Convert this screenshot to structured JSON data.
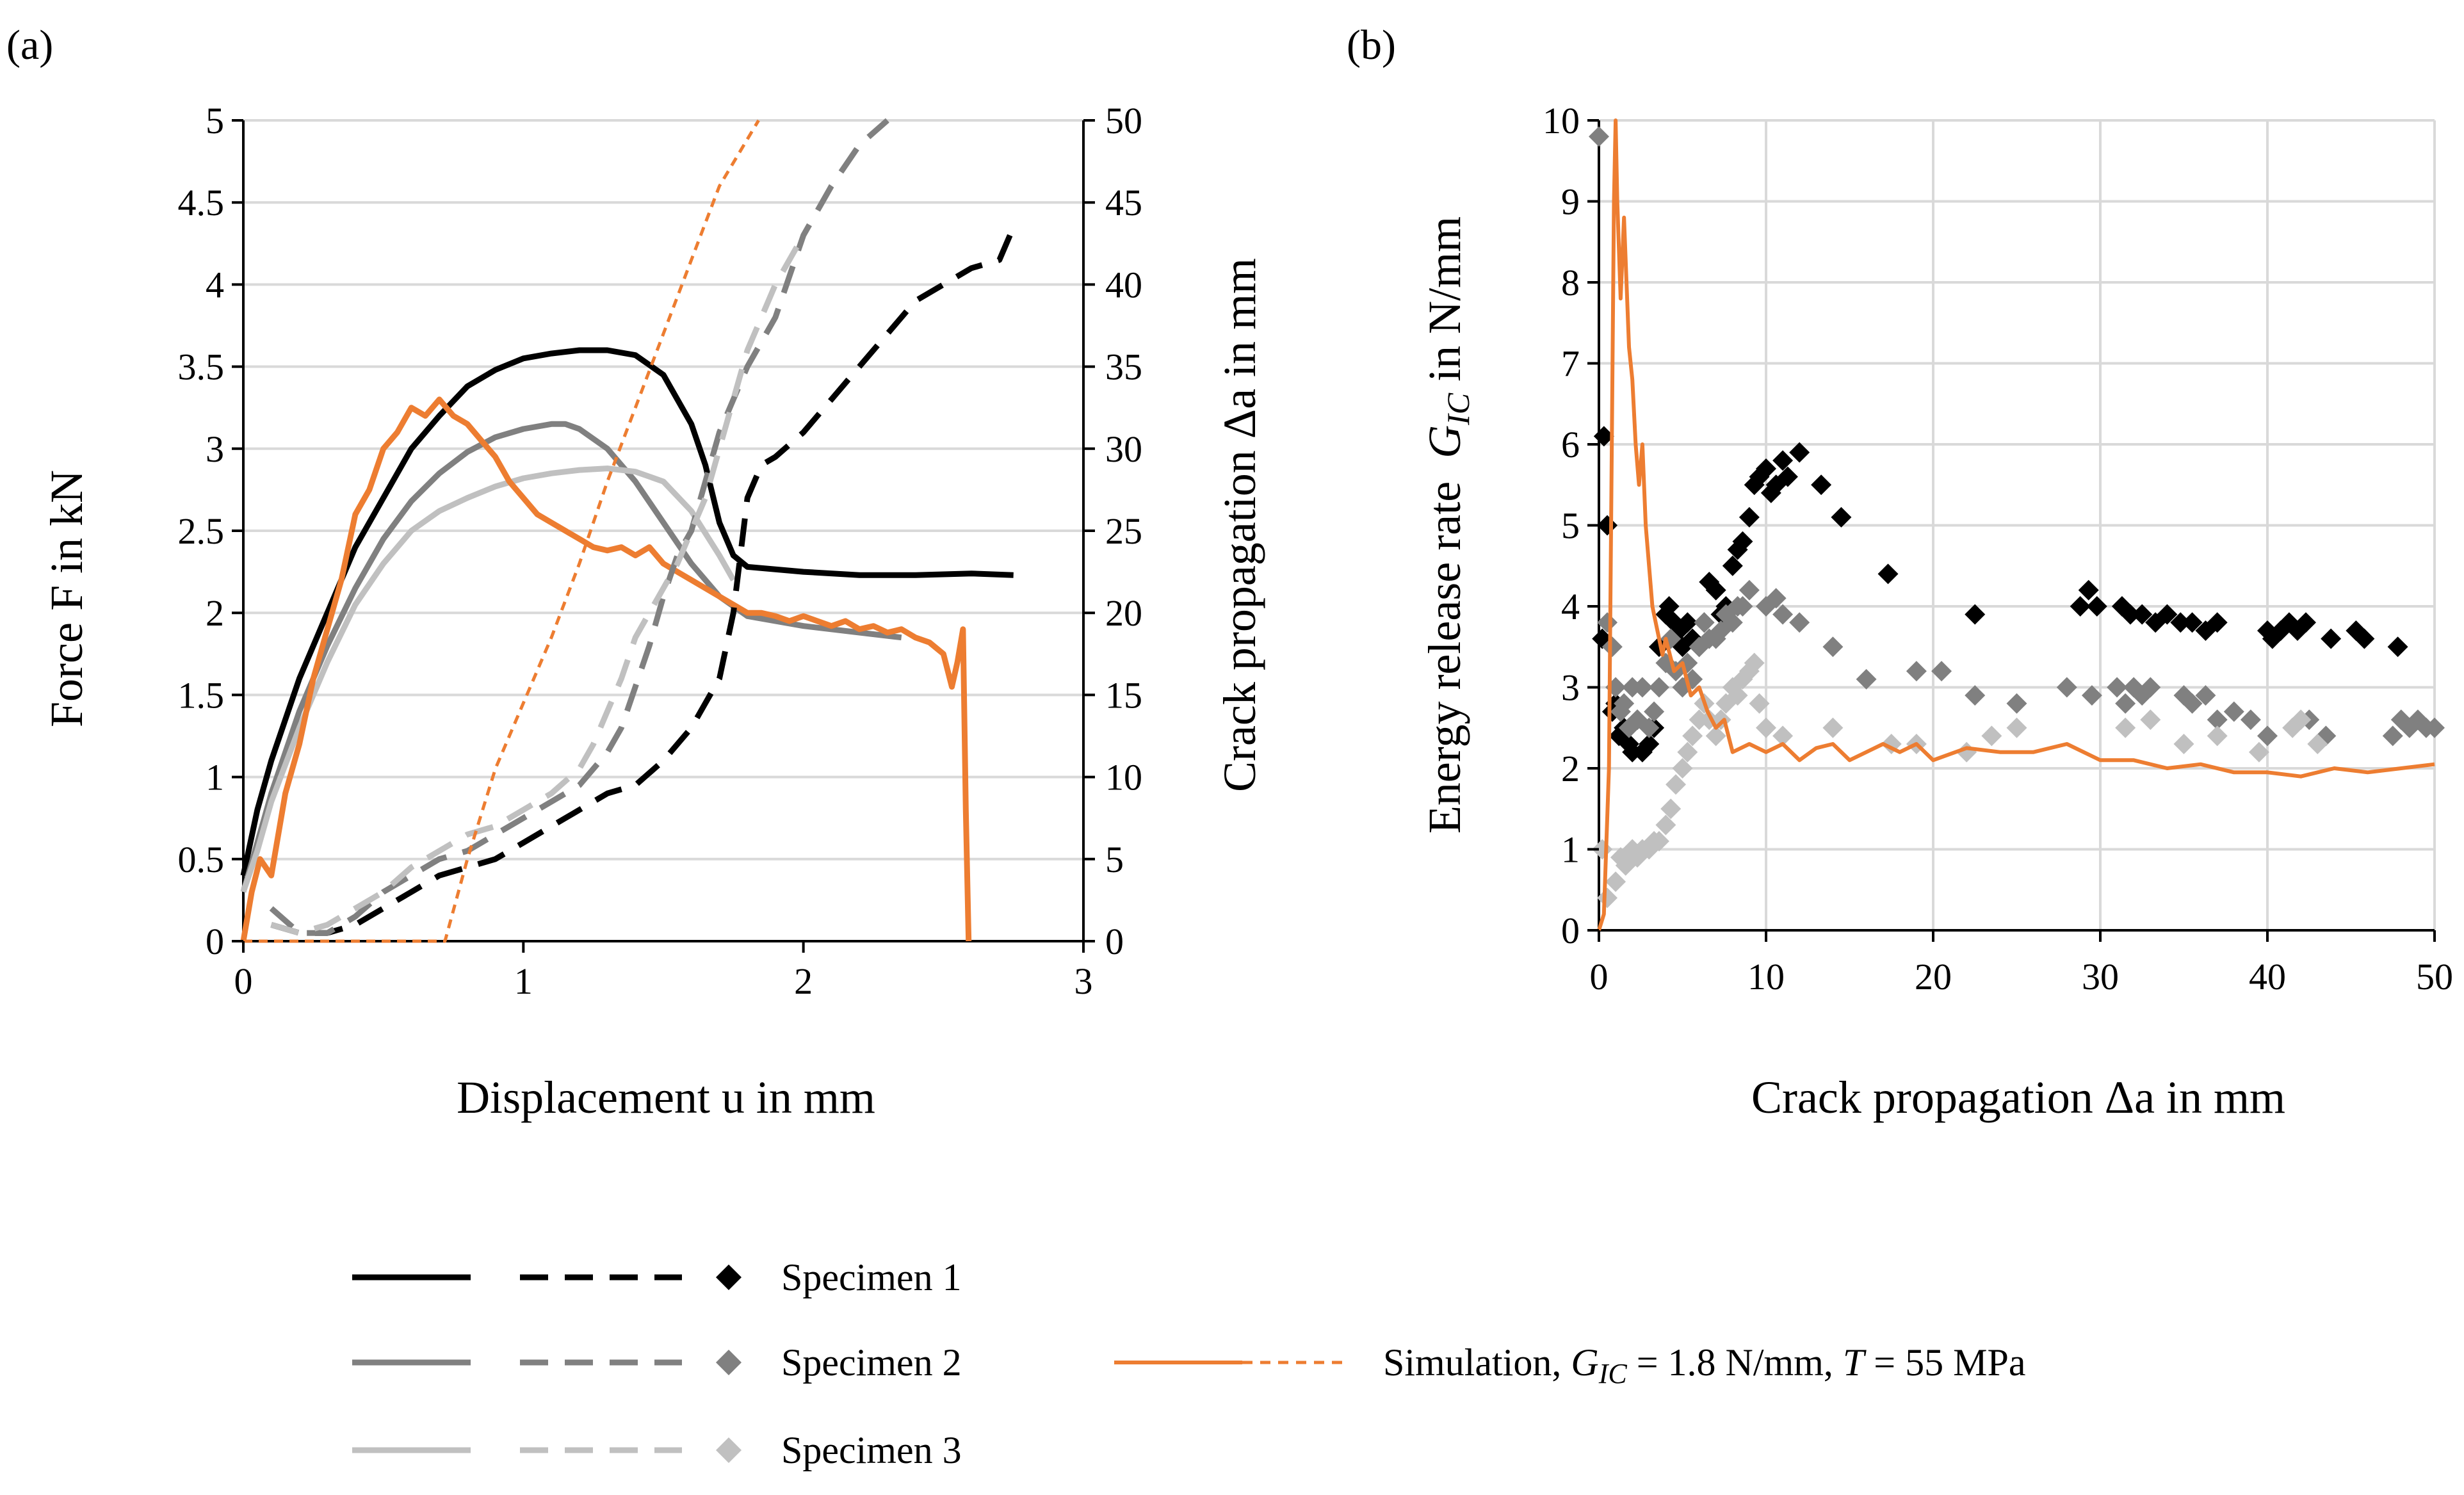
{
  "chart_data": [
    {
      "type": "line",
      "panel_label": "(a)",
      "xlabel": "Displacement u in mm",
      "ylabel_left": "Force F in kN",
      "ylabel_right": "Crack propagation Δa in mm",
      "xlim": [
        0,
        3
      ],
      "ylim_left": [
        0,
        5
      ],
      "ylim_right": [
        0,
        50
      ],
      "x_ticks": [
        "0",
        "1",
        "2",
        "3"
      ],
      "y_ticks_left": [
        "0",
        "0.5",
        "1",
        "1.5",
        "2",
        "2.5",
        "3",
        "3.5",
        "4",
        "4.5",
        "5"
      ],
      "y_ticks_right": [
        "0",
        "5",
        "10",
        "15",
        "20",
        "25",
        "30",
        "35",
        "40",
        "45",
        "50"
      ],
      "grid": "horizontal",
      "series": [
        {
          "axis": "left",
          "style": "solid",
          "color": "#000000",
          "x": [
            0,
            0.05,
            0.1,
            0.2,
            0.3,
            0.4,
            0.5,
            0.6,
            0.7,
            0.8,
            0.9,
            1.0,
            1.1,
            1.2,
            1.3,
            1.4,
            1.5,
            1.6,
            1.65,
            1.7,
            1.75,
            1.8,
            2.0,
            2.2,
            2.4,
            2.6,
            2.75
          ],
          "y": [
            0.4,
            0.8,
            1.1,
            1.6,
            2.0,
            2.4,
            2.7,
            3.0,
            3.2,
            3.38,
            3.48,
            3.55,
            3.58,
            3.6,
            3.6,
            3.57,
            3.45,
            3.15,
            2.9,
            2.55,
            2.35,
            2.28,
            2.25,
            2.23,
            2.23,
            2.24,
            2.23
          ]
        },
        {
          "axis": "left",
          "style": "solid",
          "color": "#808080",
          "x": [
            0,
            0.05,
            0.1,
            0.2,
            0.3,
            0.4,
            0.5,
            0.6,
            0.7,
            0.8,
            0.9,
            1.0,
            1.1,
            1.15,
            1.2,
            1.3,
            1.4,
            1.5,
            1.6,
            1.7,
            1.8,
            2.0,
            2.2,
            2.35
          ],
          "y": [
            0.3,
            0.6,
            0.9,
            1.4,
            1.8,
            2.15,
            2.45,
            2.68,
            2.85,
            2.98,
            3.07,
            3.12,
            3.15,
            3.15,
            3.12,
            3.0,
            2.8,
            2.55,
            2.3,
            2.1,
            1.98,
            1.92,
            1.88,
            1.85
          ]
        },
        {
          "axis": "left",
          "style": "solid",
          "color": "#c0c0c0",
          "x": [
            0,
            0.05,
            0.1,
            0.2,
            0.3,
            0.4,
            0.5,
            0.6,
            0.7,
            0.8,
            0.9,
            1.0,
            1.1,
            1.2,
            1.3,
            1.4,
            1.5,
            1.6,
            1.7,
            1.75
          ],
          "y": [
            0.3,
            0.55,
            0.85,
            1.3,
            1.7,
            2.05,
            2.3,
            2.5,
            2.62,
            2.7,
            2.77,
            2.82,
            2.85,
            2.87,
            2.88,
            2.86,
            2.8,
            2.62,
            2.35,
            2.2
          ]
        },
        {
          "axis": "left",
          "style": "solid",
          "color": "#ed7d31",
          "x": [
            0,
            0.03,
            0.06,
            0.1,
            0.15,
            0.2,
            0.25,
            0.3,
            0.35,
            0.4,
            0.45,
            0.5,
            0.55,
            0.6,
            0.65,
            0.7,
            0.75,
            0.8,
            0.85,
            0.9,
            0.95,
            1.0,
            1.05,
            1.1,
            1.15,
            1.2,
            1.25,
            1.3,
            1.35,
            1.4,
            1.45,
            1.5,
            1.55,
            1.6,
            1.65,
            1.7,
            1.75,
            1.8,
            1.85,
            1.9,
            1.95,
            2.0,
            2.05,
            2.1,
            2.15,
            2.2,
            2.25,
            2.3,
            2.35,
            2.4,
            2.45,
            2.5,
            2.53,
            2.55,
            2.57,
            2.58,
            2.59
          ],
          "y": [
            0.0,
            0.3,
            0.5,
            0.4,
            0.9,
            1.2,
            1.6,
            1.9,
            2.2,
            2.6,
            2.75,
            3.0,
            3.1,
            3.25,
            3.2,
            3.3,
            3.2,
            3.15,
            3.05,
            2.95,
            2.8,
            2.7,
            2.6,
            2.55,
            2.5,
            2.45,
            2.4,
            2.38,
            2.4,
            2.35,
            2.4,
            2.3,
            2.25,
            2.2,
            2.15,
            2.1,
            2.05,
            2.0,
            2.0,
            1.98,
            1.95,
            1.98,
            1.95,
            1.92,
            1.95,
            1.9,
            1.92,
            1.88,
            1.9,
            1.85,
            1.82,
            1.75,
            1.55,
            1.7,
            1.9,
            0.8,
            0.0
          ]
        },
        {
          "axis": "right",
          "style": "dashed",
          "color": "#000000",
          "x": [
            0.1,
            0.2,
            0.3,
            0.4,
            0.5,
            0.6,
            0.7,
            0.8,
            0.9,
            1.0,
            1.1,
            1.2,
            1.3,
            1.4,
            1.5,
            1.6,
            1.7,
            1.75,
            1.8,
            1.85,
            1.9,
            2.0,
            2.1,
            2.2,
            2.3,
            2.4,
            2.5,
            2.6,
            2.7,
            2.75
          ],
          "y": [
            1.0,
            0.5,
            0.5,
            1.0,
            2.0,
            3.0,
            4.0,
            4.5,
            5.0,
            6.0,
            7.0,
            8.0,
            9.0,
            9.5,
            11.0,
            13.0,
            16.0,
            20.0,
            27.0,
            29.0,
            29.5,
            31.0,
            33.0,
            35.0,
            37.0,
            39.0,
            40.0,
            41.0,
            41.5,
            43.5
          ]
        },
        {
          "axis": "right",
          "style": "dashed",
          "color": "#808080",
          "x": [
            0.1,
            0.2,
            0.3,
            0.4,
            0.5,
            0.6,
            0.7,
            0.8,
            0.9,
            1.0,
            1.1,
            1.2,
            1.3,
            1.35,
            1.4,
            1.45,
            1.5,
            1.55,
            1.6,
            1.65,
            1.7,
            1.75,
            1.8,
            1.9,
            2.0,
            2.1,
            2.2,
            2.3
          ],
          "y": [
            2.0,
            0.5,
            0.5,
            1.5,
            3.0,
            4.0,
            5.0,
            5.5,
            6.5,
            7.5,
            8.5,
            9.5,
            11.5,
            13.0,
            15.5,
            18.0,
            21.0,
            23.5,
            25.0,
            28.0,
            31.0,
            33.0,
            35.0,
            38.0,
            43.0,
            46.0,
            48.5,
            50.0
          ]
        },
        {
          "axis": "right",
          "style": "dashed",
          "color": "#c0c0c0",
          "x": [
            0.1,
            0.2,
            0.3,
            0.4,
            0.5,
            0.6,
            0.7,
            0.8,
            0.9,
            1.0,
            1.1,
            1.2,
            1.25,
            1.3,
            1.35,
            1.4,
            1.45,
            1.5,
            1.55,
            1.6,
            1.65,
            1.7,
            1.75,
            1.8,
            1.85,
            1.9,
            2.0
          ],
          "y": [
            1.0,
            0.5,
            1.0,
            2.0,
            3.0,
            4.5,
            5.5,
            6.5,
            7.0,
            8.0,
            9.0,
            10.5,
            12.0,
            14.0,
            16.0,
            18.5,
            20.0,
            21.5,
            23.0,
            25.0,
            27.0,
            30.0,
            33.0,
            36.0,
            38.0,
            40.0,
            43.0
          ]
        },
        {
          "axis": "right",
          "style": "fine-dashed",
          "color": "#ed7d31",
          "x": [
            0.0,
            0.72,
            0.8,
            0.9,
            1.0,
            1.1,
            1.2,
            1.3,
            1.4,
            1.5,
            1.6,
            1.7,
            1.84
          ],
          "y": [
            0.0,
            0.0,
            5.0,
            10.5,
            14.5,
            18.5,
            23.0,
            28.0,
            32.5,
            37.0,
            41.5,
            46.0,
            50.0
          ]
        }
      ]
    },
    {
      "type": "scatter",
      "panel_label": "(b)",
      "xlabel": "Crack propagation Δa in mm",
      "ylabel": "Energy release rate G_IC in N/mm",
      "ylabel_main": "Energy release rate",
      "ylabel_sym": "G",
      "ylabel_sub": "IC",
      "ylabel_unit": "in N/mm",
      "xlim": [
        0,
        50
      ],
      "ylim": [
        0,
        10
      ],
      "x_ticks": [
        "0",
        "10",
        "20",
        "30",
        "40",
        "50"
      ],
      "y_ticks": [
        "0",
        "1",
        "2",
        "3",
        "4",
        "5",
        "6",
        "7",
        "8",
        "9",
        "10"
      ],
      "grid": "both",
      "series": [
        {
          "marker": "diamond",
          "color": "#000000",
          "x": [
            0.2,
            0.3,
            0.5,
            0.8,
            1.0,
            1.2,
            1.5,
            1.8,
            2.0,
            2.3,
            2.6,
            3.0,
            3.3,
            3.6,
            4.0,
            4.2,
            4.5,
            4.8,
            5.0,
            5.3,
            5.6,
            6.0,
            6.3,
            6.6,
            7.0,
            7.3,
            7.6,
            8.0,
            8.3,
            8.6,
            9.0,
            9.3,
            9.6,
            10.0,
            10.3,
            10.6,
            11.0,
            11.3,
            12.0,
            13.3,
            14.5,
            17.3,
            22.5,
            28.8,
            29.3,
            29.8,
            31.3,
            31.8,
            32.5,
            33.3,
            34.0,
            34.8,
            35.5,
            36.3,
            37.0,
            40.0,
            40.3,
            40.8,
            41.3,
            41.8,
            42.3,
            43.8,
            45.3,
            45.8,
            47.8
          ],
          "y": [
            3.6,
            6.1,
            5.0,
            2.7,
            2.8,
            2.4,
            2.5,
            2.3,
            2.2,
            2.6,
            2.2,
            2.3,
            2.5,
            3.5,
            3.9,
            4.0,
            3.8,
            3.7,
            3.5,
            3.8,
            3.6,
            3.5,
            3.8,
            4.3,
            4.2,
            3.9,
            4.0,
            4.5,
            4.7,
            4.8,
            5.1,
            5.5,
            5.6,
            5.7,
            5.4,
            5.5,
            5.8,
            5.6,
            5.9,
            5.5,
            5.1,
            4.4,
            3.9,
            4.0,
            4.2,
            4.0,
            4.0,
            3.9,
            3.9,
            3.8,
            3.9,
            3.8,
            3.8,
            3.7,
            3.8,
            3.7,
            3.6,
            3.7,
            3.8,
            3.7,
            3.8,
            3.6,
            3.7,
            3.6,
            3.5
          ]
        },
        {
          "marker": "diamond",
          "color": "#808080",
          "x": [
            0.0,
            0.5,
            0.8,
            1.0,
            1.3,
            1.5,
            1.8,
            2.0,
            2.3,
            2.6,
            3.0,
            3.3,
            3.6,
            4.0,
            4.3,
            4.6,
            5.0,
            5.3,
            5.6,
            6.0,
            6.3,
            6.6,
            7.0,
            7.3,
            7.6,
            8.0,
            8.3,
            8.6,
            9.0,
            10.0,
            10.6,
            11.0,
            12.0,
            14.0,
            16.0,
            19.0,
            20.5,
            22.5,
            25.0,
            28.0,
            29.5,
            31.0,
            31.5,
            32.0,
            32.5,
            33.0,
            35.0,
            35.5,
            36.3,
            37.0,
            38.0,
            39.0,
            40.0,
            42.5,
            43.5,
            47.5,
            48.0,
            48.5,
            49.0,
            49.5,
            50.0
          ],
          "y": [
            9.8,
            3.8,
            3.5,
            3.0,
            2.7,
            2.8,
            2.5,
            3.0,
            2.6,
            3.0,
            2.5,
            2.7,
            3.0,
            3.3,
            3.6,
            3.2,
            3.0,
            3.3,
            3.1,
            3.5,
            3.8,
            3.6,
            3.6,
            3.7,
            3.9,
            3.8,
            4.0,
            4.0,
            4.2,
            4.0,
            4.1,
            3.9,
            3.8,
            3.5,
            3.1,
            3.2,
            3.2,
            2.9,
            2.8,
            3.0,
            2.9,
            3.0,
            2.8,
            3.0,
            2.9,
            3.0,
            2.9,
            2.8,
            2.9,
            2.6,
            2.7,
            2.6,
            2.4,
            2.6,
            2.4,
            2.4,
            2.6,
            2.5,
            2.6,
            2.5,
            2.5
          ]
        },
        {
          "marker": "diamond",
          "color": "#c0c0c0",
          "x": [
            0.2,
            0.5,
            1.0,
            1.3,
            1.6,
            2.0,
            2.3,
            2.6,
            3.0,
            3.3,
            3.6,
            4.0,
            4.3,
            4.6,
            5.0,
            5.3,
            5.6,
            6.0,
            6.3,
            6.6,
            7.0,
            7.3,
            7.6,
            8.0,
            8.3,
            8.6,
            9.0,
            9.3,
            9.6,
            10.0,
            11.0,
            14.0,
            17.5,
            19.0,
            22.0,
            23.5,
            25.0,
            31.5,
            33.0,
            35.0,
            37.0,
            39.5,
            41.5,
            42.0,
            43.0
          ],
          "y": [
            1.0,
            0.4,
            0.6,
            0.9,
            0.8,
            1.0,
            0.9,
            1.0,
            1.0,
            1.1,
            1.1,
            1.3,
            1.5,
            1.8,
            2.0,
            2.2,
            2.4,
            2.6,
            2.8,
            2.6,
            2.4,
            2.6,
            2.8,
            3.0,
            2.9,
            3.1,
            3.2,
            3.3,
            2.8,
            2.5,
            2.4,
            2.5,
            2.3,
            2.3,
            2.2,
            2.4,
            2.5,
            2.5,
            2.6,
            2.3,
            2.4,
            2.2,
            2.5,
            2.6,
            2.3
          ]
        },
        {
          "marker": "line",
          "color": "#ed7d31",
          "x": [
            0.0,
            0.3,
            0.6,
            0.9,
            1.0,
            1.1,
            1.3,
            1.5,
            1.8,
            2.0,
            2.2,
            2.4,
            2.6,
            2.8,
            3.0,
            3.2,
            3.4,
            3.6,
            3.8,
            4.0,
            4.5,
            5.0,
            5.5,
            6.0,
            6.5,
            7.0,
            7.5,
            8.0,
            9.0,
            10.0,
            11.0,
            12.0,
            13.0,
            14.0,
            15.0,
            16.0,
            17.0,
            18.0,
            19.0,
            20.0,
            22.0,
            24.0,
            26.0,
            28.0,
            30.0,
            32.0,
            34.0,
            36.0,
            38.0,
            40.0,
            42.0,
            44.0,
            46.0,
            48.0,
            50.0
          ],
          "y": [
            0.0,
            0.2,
            2.0,
            9.0,
            10.0,
            9.0,
            7.8,
            8.8,
            7.2,
            6.8,
            6.0,
            5.5,
            6.0,
            5.0,
            4.5,
            4.0,
            3.8,
            3.6,
            3.4,
            3.6,
            3.2,
            3.3,
            2.9,
            3.0,
            2.7,
            2.5,
            2.6,
            2.2,
            2.3,
            2.2,
            2.3,
            2.1,
            2.25,
            2.3,
            2.1,
            2.2,
            2.3,
            2.2,
            2.3,
            2.1,
            2.25,
            2.2,
            2.2,
            2.3,
            2.1,
            2.1,
            2.0,
            2.05,
            1.95,
            1.95,
            1.9,
            2.0,
            1.95,
            2.0,
            2.05
          ]
        }
      ]
    }
  ],
  "legend": {
    "items": [
      {
        "label": "Specimen 1",
        "color": "#000000"
      },
      {
        "label": "Specimen 2",
        "color": "#808080"
      },
      {
        "label": "Specimen 3",
        "color": "#c0c0c0"
      }
    ],
    "simulation": {
      "label_prefix": "Simulation, ",
      "label_sym": "G",
      "label_sub": "IC",
      "label_mid": " = 1.8 N/mm, ",
      "label_t": "T",
      "label_suffix": " = 55 MPa",
      "color": "#ed7d31"
    }
  }
}
